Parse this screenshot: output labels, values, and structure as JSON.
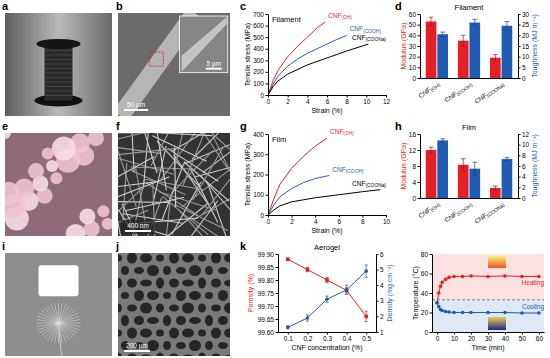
{
  "panel_labels": [
    "a",
    "b",
    "c",
    "d",
    "e",
    "f",
    "g",
    "h",
    "i",
    "j",
    "k"
  ],
  "scale_bars": [
    "50 µm",
    "5 µm",
    "400 nm",
    "200 µm"
  ],
  "chart_data": [
    {
      "type": "line",
      "title": "Filament",
      "xlabel": "Strain (%)",
      "ylabel": "Tensile stress (MPa)",
      "xlim": [
        0,
        12
      ],
      "xticks": [
        0,
        2,
        4,
        6,
        8,
        10,
        12
      ],
      "ylim": [
        0,
        700
      ],
      "yticks": [
        0,
        100,
        200,
        300,
        400,
        500,
        600,
        700
      ],
      "series": [
        {
          "name": "CNF(OH)",
          "color": "#e41f26",
          "x": [
            0,
            0.5,
            1,
            2,
            3,
            4,
            5,
            5.8
          ],
          "values": [
            0,
            120,
            210,
            330,
            420,
            500,
            580,
            630
          ]
        },
        {
          "name": "CNF(COOH)",
          "color": "#2a5cc4",
          "x": [
            0,
            0.5,
            1,
            2,
            3,
            4,
            5,
            6,
            7,
            8
          ],
          "values": [
            0,
            90,
            160,
            250,
            310,
            360,
            400,
            440,
            480,
            515
          ]
        },
        {
          "name": "CNF(COONa)",
          "color": "#000000",
          "x": [
            0,
            0.5,
            1,
            2,
            4,
            6,
            8,
            10.2
          ],
          "values": [
            0,
            70,
            120,
            180,
            260,
            320,
            380,
            440
          ]
        }
      ]
    },
    {
      "type": "bar",
      "title": "Filament",
      "categories": [
        "CNF(OH)",
        "CNF(COOH)",
        "CNF(COONa)"
      ],
      "ylabel": "Modulus (GPa)",
      "y2label": "Toughness (MJ m⁻³)",
      "ylim": [
        0,
        60
      ],
      "yticks": [
        0,
        10,
        20,
        30,
        40,
        50,
        60
      ],
      "y2lim": [
        0,
        30
      ],
      "y2ticks": [
        0,
        5,
        10,
        15,
        20,
        25,
        30
      ],
      "series": [
        {
          "color": "#e41f26",
          "values": [
            53,
            35,
            19
          ],
          "errors": [
            4,
            5,
            3
          ]
        },
        {
          "color": "#1f5bb5",
          "axis": "y2",
          "values": [
            20.5,
            26,
            24.5
          ],
          "errors": [
            1,
            1.5,
            2
          ]
        }
      ]
    },
    {
      "type": "line",
      "title": "Film",
      "xlabel": "Strain (%)",
      "ylabel": "Tensile stress (MPa)",
      "xlim": [
        0,
        10
      ],
      "xticks": [
        0,
        2,
        4,
        6,
        8,
        10
      ],
      "ylim": [
        0,
        400
      ],
      "yticks": [
        0,
        100,
        200,
        300,
        400
      ],
      "series": [
        {
          "name": "CNF(OH)",
          "color": "#e41f26",
          "x": [
            0,
            0.5,
            1,
            2,
            3,
            4,
            5
          ],
          "values": [
            0,
            80,
            150,
            230,
            290,
            340,
            380
          ]
        },
        {
          "name": "CNF(COOH)",
          "color": "#2a5cc4",
          "x": [
            0,
            0.5,
            1,
            2,
            3,
            4,
            5.2
          ],
          "values": [
            0,
            50,
            90,
            130,
            160,
            180,
            195
          ]
        },
        {
          "name": "CNF(COONa)",
          "color": "#000000",
          "x": [
            0,
            0.5,
            1,
            2,
            4,
            6,
            8,
            9.5
          ],
          "values": [
            0,
            25,
            45,
            65,
            85,
            100,
            115,
            125
          ]
        }
      ]
    },
    {
      "type": "bar",
      "title": "Film",
      "categories": [
        "CNF(OH)",
        "CNF(COOH)",
        "CNF(COONa)"
      ],
      "ylabel": "Modulus (GPa)",
      "y2label": "Toughness (MJ m⁻³)",
      "ylim": [
        0,
        16
      ],
      "yticks": [
        0,
        4,
        8,
        12,
        16
      ],
      "y2lim": [
        0,
        12
      ],
      "y2ticks": [
        0,
        2,
        4,
        6,
        8,
        10,
        12
      ],
      "series": [
        {
          "color": "#e41f26",
          "values": [
            12,
            8.3,
            2.5
          ],
          "errors": [
            0.7,
            1.5,
            0.5
          ]
        },
        {
          "color": "#1f5bb5",
          "axis": "y2",
          "values": [
            10.8,
            5.5,
            7.3
          ],
          "errors": [
            0.3,
            1.2,
            0.3
          ]
        }
      ]
    },
    {
      "type": "line",
      "title": "Aerogel",
      "xlabel": "CNF concentration (%)",
      "ylabel": "Porosity (%)",
      "y2label": "Density (mg cm⁻³)",
      "x": [
        0.1,
        0.2,
        0.3,
        0.4,
        0.5
      ],
      "xlim": [
        0.05,
        0.55
      ],
      "xticks": [
        0.1,
        0.2,
        0.3,
        0.4,
        0.5
      ],
      "ylim": [
        99.6,
        99.9
      ],
      "yticks": [
        {
          "value": 99.6,
          "label": "99.60"
        },
        99.65,
        {
          "value": 99.7,
          "label": "99.70"
        },
        99.75,
        {
          "value": 99.8,
          "label": "99.80"
        },
        99.85,
        {
          "value": 99.9,
          "label": "99.90"
        }
      ],
      "y2lim": [
        1,
        6
      ],
      "y2ticks": [
        1,
        2,
        3,
        4,
        5,
        6
      ],
      "series": [
        {
          "color": "#e41f26",
          "marker": "square",
          "values": [
            99.88,
            99.84,
            99.8,
            99.76,
            99.66
          ],
          "errors": [
            0.003,
            0.008,
            0.01,
            0.01,
            0.02
          ]
        },
        {
          "color": "#1f5bb5",
          "marker": "circle",
          "axis": "y2",
          "values": [
            1.3,
            1.9,
            3.1,
            3.7,
            4.9
          ],
          "errors": [
            0.1,
            0.2,
            0.2,
            0.3,
            0.4
          ]
        }
      ]
    },
    {
      "type": "line",
      "xlabel": "Time (min)",
      "ylabel": "Temperature (°C)",
      "x": [
        0,
        1,
        2,
        3,
        5,
        7,
        10,
        15,
        20,
        30,
        40,
        50,
        60
      ],
      "xlim": [
        -3,
        63
      ],
      "xticks": [
        0,
        10,
        20,
        30,
        40,
        50,
        60
      ],
      "ylim": [
        0,
        80
      ],
      "yticks": [
        0,
        20,
        40,
        60,
        80
      ],
      "reference_line": 33,
      "series": [
        {
          "name": "Heating",
          "color": "#e41f26",
          "marker": "circle",
          "values": [
            30,
            40,
            47,
            51,
            54,
            56,
            57,
            57,
            57.5,
            57,
            57.5,
            57,
            57
          ]
        },
        {
          "name": "Cooling",
          "color": "#1f5bb5",
          "marker": "circle",
          "values": [
            30,
            26,
            23,
            22,
            21,
            20.5,
            20,
            20,
            20,
            20,
            20,
            19.5,
            19.5
          ]
        }
      ]
    }
  ]
}
